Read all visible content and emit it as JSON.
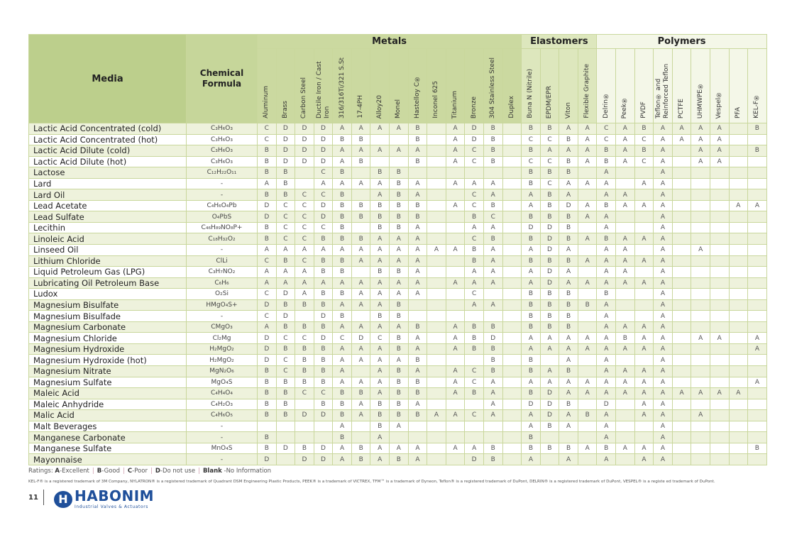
{
  "header": {
    "media": "Media",
    "formula": "Chemical Formula",
    "groups": [
      {
        "label": "Metals",
        "span": 14,
        "cls": "g-metals",
        "col": "m"
      },
      {
        "label": "Elastomers",
        "span": 4,
        "cls": "g-elast",
        "col": "e"
      },
      {
        "label": "Polymers",
        "span": 9,
        "cls": "g-poly",
        "col": "p"
      }
    ],
    "columns": [
      "Aluminum",
      "Brass",
      "Carbon Steel",
      "Ductile Iron / Cast Iron",
      "316/316Ti/321 S.St",
      "17-4PH",
      "Alloy20",
      "Monel",
      "Hastelloy C®",
      "Inconel 625",
      "Titanium",
      "Bronze",
      "304 Stainless Steel",
      "Duplex",
      "Buna N (Nitrile)",
      "EPDM/EPR",
      "Viton",
      "Flexible Graphite",
      "Delrin®",
      "Peek®",
      "PVDF",
      "Teflon® and Reinforced Teflon",
      "PCTFE",
      "UHMWPE®",
      "Vespel®",
      "PFA",
      "KEL-F®"
    ]
  },
  "rows": [
    {
      "media": "Lactic Acid Concentrated (cold)",
      "formula": "C₃H₆O₃",
      "r": [
        "C",
        "D",
        "D",
        "D",
        "A",
        "A",
        "A",
        "A",
        "B",
        "",
        "A",
        "D",
        "B",
        "",
        "B",
        "B",
        "A",
        "A",
        "C",
        "A",
        "B",
        "A",
        "A",
        "A",
        "A",
        "",
        "B"
      ]
    },
    {
      "media": "Lactic Acid Concentrated (hot)",
      "formula": "C₃H₆O₃",
      "r": [
        "C",
        "D",
        "D",
        "D",
        "B",
        "B",
        "",
        "",
        "B",
        "",
        "A",
        "D",
        "B",
        "",
        "C",
        "C",
        "B",
        "A",
        "C",
        "A",
        "C",
        "A",
        "A",
        "A",
        "A",
        "",
        ""
      ]
    },
    {
      "media": "Lactic Acid Dilute (cold)",
      "formula": "C₃H₆O₃",
      "r": [
        "B",
        "D",
        "D",
        "D",
        "A",
        "A",
        "A",
        "A",
        "A",
        "",
        "A",
        "C",
        "B",
        "",
        "B",
        "A",
        "A",
        "A",
        "B",
        "A",
        "B",
        "A",
        "",
        "A",
        "A",
        "",
        "B"
      ]
    },
    {
      "media": "Lactic Acid Dilute (hot)",
      "formula": "C₃H₆O₃",
      "r": [
        "B",
        "D",
        "D",
        "D",
        "A",
        "B",
        "",
        "",
        "B",
        "",
        "A",
        "C",
        "B",
        "",
        "C",
        "C",
        "B",
        "A",
        "B",
        "A",
        "C",
        "A",
        "",
        "A",
        "A",
        "",
        ""
      ]
    },
    {
      "media": "Lactose",
      "formula": "C₁₂H₂₂O₁₁",
      "r": [
        "B",
        "B",
        "",
        "C",
        "B",
        "",
        "B",
        "B",
        "",
        "",
        "",
        "",
        "",
        "",
        "B",
        "B",
        "B",
        "",
        "A",
        "",
        "",
        "A",
        "",
        "",
        "",
        "",
        ""
      ]
    },
    {
      "media": "Lard",
      "formula": "-",
      "r": [
        "A",
        "B",
        "",
        "A",
        "A",
        "A",
        "A",
        "B",
        "A",
        "",
        "A",
        "A",
        "A",
        "",
        "B",
        "C",
        "A",
        "A",
        "A",
        "",
        "A",
        "A",
        "",
        "",
        "",
        "",
        ""
      ]
    },
    {
      "media": "Lard Oil",
      "formula": "-",
      "r": [
        "B",
        "B",
        "C",
        "C",
        "B",
        "",
        "A",
        "B",
        "A",
        "",
        "",
        "C",
        "A",
        "",
        "A",
        "B",
        "A",
        "",
        "A",
        "A",
        "",
        "A",
        "",
        "",
        "",
        "",
        ""
      ]
    },
    {
      "media": "Lead Acetate",
      "formula": "C₄H₆O₄Pb",
      "r": [
        "D",
        "C",
        "C",
        "D",
        "B",
        "B",
        "B",
        "B",
        "B",
        "",
        "A",
        "C",
        "B",
        "",
        "A",
        "B",
        "D",
        "A",
        "B",
        "A",
        "A",
        "A",
        "",
        "",
        "",
        "A",
        "A"
      ]
    },
    {
      "media": "Lead Sulfate",
      "formula": "O₄PbS",
      "r": [
        "D",
        "C",
        "C",
        "D",
        "B",
        "B",
        "B",
        "B",
        "B",
        "",
        "",
        "B",
        "C",
        "",
        "B",
        "B",
        "B",
        "A",
        "A",
        "",
        "",
        "A",
        "",
        "",
        "",
        "",
        ""
      ]
    },
    {
      "media": "Lecithin",
      "formula": "C₄₆H₈₉NO₈P+",
      "r": [
        "B",
        "C",
        "C",
        "C",
        "B",
        "",
        "B",
        "B",
        "A",
        "",
        "",
        "A",
        "A",
        "",
        "D",
        "D",
        "B",
        "",
        "A",
        "",
        "",
        "A",
        "",
        "",
        "",
        "",
        ""
      ]
    },
    {
      "media": "Linoleic Acid",
      "formula": "C₁₈H₃₂O₂",
      "r": [
        "B",
        "C",
        "C",
        "B",
        "B",
        "B",
        "A",
        "A",
        "A",
        "",
        "",
        "C",
        "B",
        "",
        "B",
        "D",
        "B",
        "A",
        "B",
        "A",
        "A",
        "A",
        "",
        "",
        "",
        "",
        ""
      ]
    },
    {
      "media": "Linseed Oil",
      "formula": "-",
      "r": [
        "A",
        "A",
        "A",
        "A",
        "A",
        "A",
        "A",
        "A",
        "A",
        "A",
        "A",
        "B",
        "A",
        "",
        "A",
        "D",
        "A",
        "",
        "A",
        "A",
        "",
        "A",
        "",
        "A",
        "",
        "",
        ""
      ]
    },
    {
      "media": "Lithium Chloride",
      "formula": "ClLi",
      "r": [
        "C",
        "B",
        "C",
        "B",
        "B",
        "A",
        "A",
        "A",
        "A",
        "",
        "",
        "B",
        "A",
        "",
        "B",
        "B",
        "B",
        "A",
        "A",
        "A",
        "A",
        "A",
        "",
        "",
        "",
        "",
        ""
      ]
    },
    {
      "media": "Liquid Petroleum Gas (LPG)",
      "formula": "C₃H₇NO₂",
      "r": [
        "A",
        "A",
        "A",
        "B",
        "B",
        "",
        "B",
        "B",
        "A",
        "",
        "",
        "A",
        "A",
        "",
        "A",
        "D",
        "A",
        "",
        "A",
        "A",
        "",
        "A",
        "",
        "",
        "",
        "",
        ""
      ]
    },
    {
      "media": "Lubricating Oil Petroleum Base",
      "formula": "C₆H₆",
      "r": [
        "A",
        "A",
        "A",
        "A",
        "A",
        "A",
        "A",
        "A",
        "A",
        "",
        "A",
        "A",
        "A",
        "",
        "A",
        "D",
        "A",
        "A",
        "A",
        "A",
        "A",
        "A",
        "",
        "",
        "",
        "",
        ""
      ]
    },
    {
      "media": "Ludox",
      "formula": "O₂Si",
      "r": [
        "C",
        "D",
        "A",
        "B",
        "B",
        "A",
        "A",
        "A",
        "A",
        "",
        "",
        "C",
        "",
        "",
        "B",
        "B",
        "B",
        "",
        "B",
        "",
        "",
        "A",
        "",
        "",
        "",
        "",
        ""
      ]
    },
    {
      "media": "Magnesium Bisulfate",
      "formula": "HMgO₄S+",
      "r": [
        "D",
        "B",
        "B",
        "B",
        "A",
        "A",
        "A",
        "B",
        "",
        "",
        "",
        "A",
        "A",
        "",
        "B",
        "B",
        "B",
        "B",
        "A",
        "",
        "",
        "A",
        "",
        "",
        "",
        "",
        ""
      ]
    },
    {
      "media": "Magnesium Bisulfade",
      "formula": "-",
      "r": [
        "C",
        "D",
        "",
        "D",
        "B",
        "",
        "B",
        "B",
        "",
        "",
        "",
        "",
        "",
        "",
        "B",
        "B",
        "B",
        "",
        "A",
        "",
        "",
        "A",
        "",
        "",
        "",
        "",
        ""
      ]
    },
    {
      "media": "Magnesium Carbonate",
      "formula": "CMgO₃",
      "r": [
        "A",
        "B",
        "B",
        "B",
        "A",
        "A",
        "A",
        "A",
        "B",
        "",
        "A",
        "B",
        "B",
        "",
        "B",
        "B",
        "B",
        "",
        "A",
        "A",
        "A",
        "A",
        "",
        "",
        "",
        "",
        ""
      ]
    },
    {
      "media": "Magnesium Chloride",
      "formula": "Cl₂Mg",
      "r": [
        "D",
        "C",
        "C",
        "D",
        "C",
        "D",
        "C",
        "B",
        "A",
        "",
        "A",
        "B",
        "D",
        "",
        "A",
        "A",
        "A",
        "A",
        "A",
        "B",
        "A",
        "A",
        "",
        "A",
        "A",
        "",
        "A"
      ]
    },
    {
      "media": "Magnesium Hydroxide",
      "formula": "H₂MgO₂",
      "r": [
        "D",
        "B",
        "B",
        "B",
        "A",
        "A",
        "A",
        "B",
        "A",
        "",
        "A",
        "B",
        "B",
        "",
        "A",
        "A",
        "A",
        "A",
        "A",
        "A",
        "A",
        "A",
        "",
        "",
        "",
        "",
        "A"
      ]
    },
    {
      "media": "Magnesium Hydroxide (hot)",
      "formula": "H₂MgO₂",
      "r": [
        "D",
        "C",
        "B",
        "B",
        "A",
        "A",
        "A",
        "A",
        "B",
        "",
        "",
        "",
        "B",
        "",
        "B",
        "",
        "A",
        "",
        "A",
        "",
        "",
        "A",
        "",
        "",
        "",
        "",
        ""
      ]
    },
    {
      "media": "Magnesium Nitrate",
      "formula": "MgN₂O₆",
      "r": [
        "B",
        "C",
        "B",
        "B",
        "A",
        "",
        "A",
        "B",
        "A",
        "",
        "A",
        "C",
        "B",
        "",
        "B",
        "A",
        "B",
        "",
        "A",
        "A",
        "A",
        "A",
        "",
        "",
        "",
        "",
        ""
      ]
    },
    {
      "media": "Magnesium Sulfate",
      "formula": "MgO₄S",
      "r": [
        "B",
        "B",
        "B",
        "B",
        "A",
        "A",
        "A",
        "B",
        "B",
        "",
        "A",
        "C",
        "A",
        "",
        "A",
        "A",
        "A",
        "A",
        "A",
        "A",
        "A",
        "A",
        "",
        "",
        "",
        "",
        "A"
      ]
    },
    {
      "media": "Maleic Acid",
      "formula": "C₄H₄O₄",
      "r": [
        "B",
        "B",
        "C",
        "C",
        "B",
        "B",
        "A",
        "B",
        "B",
        "",
        "A",
        "B",
        "A",
        "",
        "B",
        "D",
        "A",
        "A",
        "A",
        "A",
        "A",
        "A",
        "A",
        "A",
        "A",
        "A",
        ""
      ]
    },
    {
      "media": "Maleic Anhydride",
      "formula": "C₄H₂O₃",
      "r": [
        "B",
        "B",
        "",
        "B",
        "B",
        "A",
        "B",
        "B",
        "A",
        "",
        "",
        "",
        "A",
        "",
        "D",
        "D",
        "B",
        "",
        "D",
        "",
        "A",
        "A",
        "",
        "",
        "",
        "",
        ""
      ]
    },
    {
      "media": "Malic Acid",
      "formula": "C₄H₆O₅",
      "r": [
        "B",
        "B",
        "D",
        "D",
        "B",
        "A",
        "B",
        "B",
        "B",
        "A",
        "A",
        "C",
        "A",
        "",
        "A",
        "D",
        "A",
        "B",
        "A",
        "",
        "A",
        "A",
        "",
        "A",
        "",
        "",
        ""
      ]
    },
    {
      "media": "Malt Beverages",
      "formula": "-",
      "r": [
        "",
        "",
        "",
        "",
        "A",
        "",
        "B",
        "A",
        "",
        "",
        "",
        "",
        "",
        "",
        "A",
        "B",
        "A",
        "",
        "A",
        "",
        "",
        "A",
        "",
        "",
        "",
        "",
        ""
      ]
    },
    {
      "media": "Manganese Carbonate",
      "formula": "-",
      "r": [
        "B",
        "",
        "",
        "",
        "B",
        "",
        "A",
        "",
        "",
        "",
        "",
        "",
        "",
        "",
        "B",
        "",
        "",
        "",
        "A",
        "",
        "",
        "A",
        "",
        "",
        "",
        "",
        ""
      ]
    },
    {
      "media": "Manganese Sulfate",
      "formula": "MnO₄S",
      "r": [
        "B",
        "D",
        "B",
        "D",
        "A",
        "B",
        "A",
        "A",
        "A",
        "",
        "A",
        "A",
        "B",
        "",
        "B",
        "B",
        "B",
        "A",
        "B",
        "A",
        "A",
        "A",
        "",
        "",
        "",
        "",
        "B"
      ]
    },
    {
      "media": "Mayonnaise",
      "formula": "-",
      "r": [
        "D",
        "",
        "D",
        "D",
        "A",
        "B",
        "A",
        "B",
        "A",
        "",
        "",
        "D",
        "B",
        "",
        "A",
        "",
        "A",
        "",
        "A",
        "",
        "A",
        "A",
        "",
        "",
        "",
        "",
        ""
      ]
    }
  ],
  "legend": {
    "prefix": "Ratings: ",
    "a_key": "A",
    "a_label": "-Excellent",
    "b_key": "B",
    "b_label": "-Good",
    "c_key": "C",
    "c_label": "-Poor",
    "d_key": "D",
    "d_label": "-Do not use",
    "blank_key": "Blank",
    "blank_label": " -No Information"
  },
  "trademarks": "KEL-F® is a registered trademark of 3M Company, NYLATRON® is a registered trademark of Quadrant DSM Engineering Plastic Products, PEEK® is a trademark of VICTREX, TFM™ is a trademark of Dyneon, Teflon® is a registered trademark of DuPont, DELRIN® is a registered trademark of DuPont, VESPEL® is a registe ed trademark of DuPont.",
  "footer": {
    "page_number": "11",
    "logo_name": "HABONIM",
    "logo_tagline": "Industrial Valves & Actuators"
  }
}
